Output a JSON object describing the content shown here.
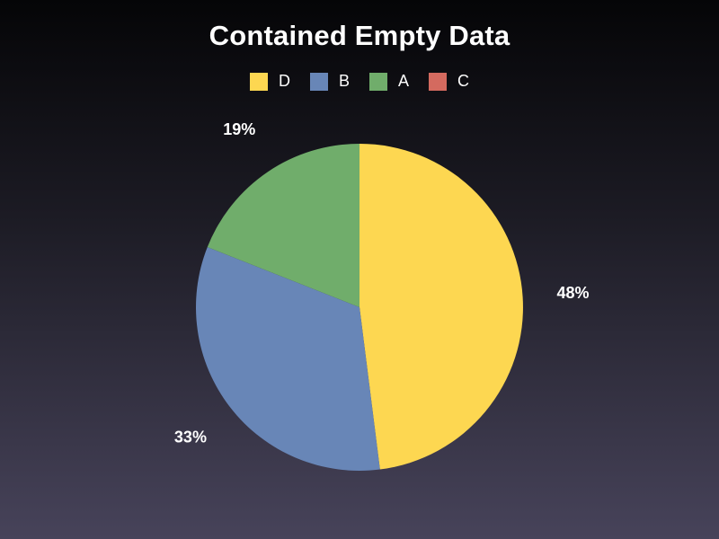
{
  "chart_data": {
    "type": "pie",
    "title": "Contained Empty Data",
    "legend_position": "top",
    "slices": [
      {
        "name": "D",
        "value": 48,
        "label": "48%",
        "color": "#fdd751"
      },
      {
        "name": "B",
        "value": 33,
        "label": "33%",
        "color": "#6886b7"
      },
      {
        "name": "A",
        "value": 19,
        "label": "19%",
        "color": "#70ad6b"
      },
      {
        "name": "C",
        "value": 0,
        "label": "",
        "color": "#d46a5f"
      }
    ]
  }
}
